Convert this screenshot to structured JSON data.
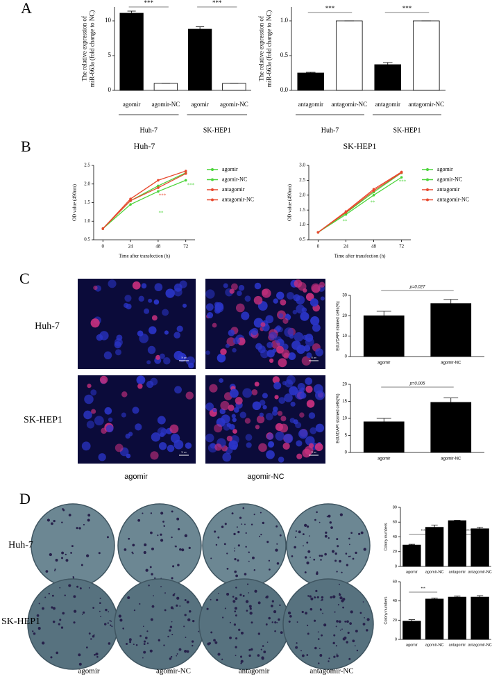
{
  "chart_data": [
    {
      "type": "bar",
      "ylabel": [
        "The relative expression of",
        "miR-663a  (fold change to NC)"
      ],
      "categories": [
        "agomir",
        "agomir-NC",
        "agomir",
        "agomir-NC"
      ],
      "values": [
        11.1,
        1,
        8.8,
        1
      ],
      "errors": [
        0.3,
        0,
        0.35,
        0
      ],
      "colors": [
        "#000000",
        "#ffffff",
        "#000000",
        "#ffffff"
      ],
      "ylim": [
        0,
        12
      ],
      "yticks": [
        0,
        5,
        10
      ],
      "groups": [
        "Huh-7",
        "SK-HEP1"
      ],
      "annotations": [
        "***",
        "***"
      ]
    },
    {
      "type": "bar",
      "ylabel": [
        "The relative expression of",
        "miR-663a  (fold change to NC)"
      ],
      "categories": [
        "antagomir",
        "antagomir-NC",
        "antagomir",
        "antagomir-NC"
      ],
      "values": [
        0.25,
        1,
        0.37,
        1
      ],
      "errors": [
        0.01,
        0,
        0.03,
        0
      ],
      "colors": [
        "#000000",
        "#ffffff",
        "#000000",
        "#ffffff"
      ],
      "ylim": [
        0,
        1.2
      ],
      "yticks": [
        {
          "value": 0,
          "label": "0.0"
        },
        0.5,
        {
          "value": 1,
          "label": "1.0"
        }
      ],
      "groups": [
        "Huh-7",
        "SK-HEP1"
      ],
      "annotations": [
        "***",
        "***"
      ]
    },
    {
      "type": "line",
      "title": "Huh-7",
      "xlabel": "Time after transfection (h)",
      "ylabel": [
        "OD value (490nm)"
      ],
      "x": [
        0,
        24,
        48,
        72
      ],
      "xlim": [
        -8,
        80
      ],
      "xticks": [
        0,
        24,
        48,
        72
      ],
      "ylim": [
        0.5,
        2.5
      ],
      "yticks": [
        0.5,
        {
          "value": 1,
          "label": "1.0"
        },
        1.5,
        {
          "value": 2,
          "label": "2.0"
        },
        2.5
      ],
      "series": [
        {
          "name": "agomir",
          "color": "#4cd43a",
          "values": [
            0.8,
            1.45,
            1.8,
            2.1
          ]
        },
        {
          "name": "agomir-NC",
          "color": "#4cd43a",
          "values": [
            0.8,
            1.55,
            1.95,
            2.3
          ]
        },
        {
          "name": "antagomir",
          "color": "#e8492f",
          "values": [
            0.8,
            1.6,
            2.1,
            2.35
          ]
        },
        {
          "name": "antagomir-NC",
          "color": "#e8492f",
          "values": [
            0.8,
            1.55,
            1.9,
            2.28
          ]
        }
      ],
      "annotations": [
        {
          "text": "***",
          "color": "#e8492f"
        },
        {
          "text": "**",
          "color": "#4cd43a"
        },
        {
          "text": "***",
          "color": "#4cd43a"
        }
      ]
    },
    {
      "type": "line",
      "title": "SK-HEP1",
      "xlabel": "Time after transfection (h)",
      "ylabel": [
        "OD value (490nm)"
      ],
      "x": [
        0,
        24,
        48,
        72
      ],
      "xlim": [
        -8,
        80
      ],
      "xticks": [
        0,
        24,
        48,
        72
      ],
      "ylim": [
        0.5,
        3
      ],
      "yticks": [
        0.5,
        {
          "value": 1,
          "label": "1.0"
        },
        1.5,
        {
          "value": 2,
          "label": "2.0"
        },
        2.5,
        {
          "value": 3,
          "label": "3.0"
        }
      ],
      "series": [
        {
          "name": "agomir",
          "color": "#4cd43a",
          "values": [
            0.75,
            1.35,
            2.0,
            2.6
          ]
        },
        {
          "name": "agomir-NC",
          "color": "#4cd43a",
          "values": [
            0.75,
            1.4,
            2.1,
            2.75
          ]
        },
        {
          "name": "antagomir",
          "color": "#e8492f",
          "values": [
            0.75,
            1.45,
            2.2,
            2.78
          ]
        },
        {
          "name": "antagomir-NC",
          "color": "#e8492f",
          "values": [
            0.75,
            1.42,
            2.15,
            2.76
          ]
        }
      ],
      "annotations": [
        {
          "text": "**",
          "color": "#4cd43a"
        },
        {
          "text": "**",
          "color": "#4cd43a"
        },
        {
          "text": "***",
          "color": "#4cd43a"
        }
      ]
    },
    {
      "type": "bar",
      "ylabel": [
        "EdU/DAPI stained cells(%)"
      ],
      "categories": [
        "agomir",
        "agomir-NC"
      ],
      "values": [
        20,
        26
      ],
      "errors": [
        2.2,
        2
      ],
      "color": "#000000",
      "ylim": [
        0,
        30
      ],
      "yticks": [
        0,
        10,
        20,
        30
      ],
      "annotations": [
        "p=0.027"
      ]
    },
    {
      "type": "bar",
      "ylabel": [
        "EdU/DAPI stained cells(%)"
      ],
      "categories": [
        "agomir",
        "agomir-NC"
      ],
      "values": [
        9,
        14.7
      ],
      "errors": [
        1,
        1.3
      ],
      "color": "#000000",
      "ylim": [
        0,
        20
      ],
      "yticks": [
        0,
        5,
        10,
        15,
        20
      ],
      "annotations": [
        "p=0.005"
      ]
    },
    {
      "type": "bar",
      "ylabel": [
        "Colony numbers"
      ],
      "categories": [
        "agomir",
        "agomir-NC",
        "antagomir",
        "antagomir-NC"
      ],
      "values": [
        29,
        53,
        62,
        51
      ],
      "errors": [
        1,
        3,
        0.5,
        2
      ],
      "color": "#000000",
      "ylim": [
        0,
        80
      ],
      "yticks": [
        0,
        20,
        40,
        60,
        80
      ],
      "annotations": [
        "***",
        "***"
      ]
    },
    {
      "type": "bar",
      "ylabel": [
        "Colony numbers"
      ],
      "categories": [
        "agomir",
        "agomir-NC",
        "antagomir",
        "antagomir-NC"
      ],
      "values": [
        19,
        42,
        44,
        44
      ],
      "errors": [
        1.5,
        1,
        1,
        1.5
      ],
      "color": "#000000",
      "ylim": [
        0,
        60
      ],
      "yticks": [
        0,
        20,
        40,
        60
      ],
      "annotations": [
        "***"
      ]
    }
  ],
  "figure": {
    "panels": [
      "A",
      "B",
      "C",
      "D"
    ],
    "c_rows": [
      "Huh-7",
      "SK-HEP1"
    ],
    "c_cols": [
      "agomir",
      "agomir-NC"
    ],
    "scale_bar": "50 μm",
    "d_rows": [
      "Huh-7",
      "SK-HEP1"
    ],
    "d_cols": [
      "agomir",
      "agomir-NC",
      "antagomir",
      "antagomir-NC"
    ]
  }
}
